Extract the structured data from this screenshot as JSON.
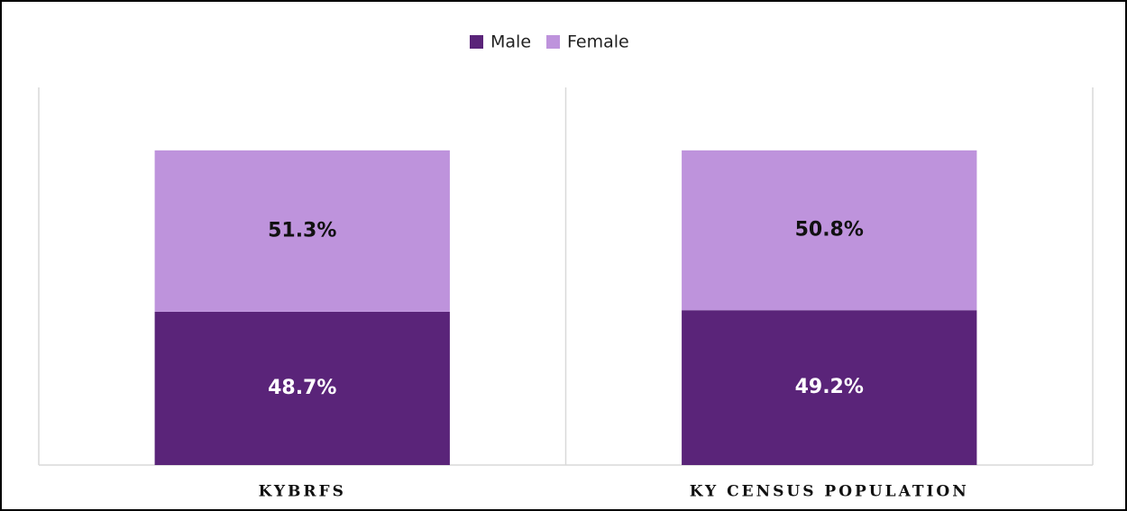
{
  "chart_data": {
    "type": "stacked_bar",
    "categories": [
      "KYBRFS",
      "KY CENSUS POPULATION"
    ],
    "series": [
      {
        "name": "Male",
        "color": "#5a2479",
        "values": [
          48.7,
          49.2
        ],
        "value_labels": [
          "48.7%",
          "49.2%"
        ]
      },
      {
        "name": "Female",
        "color": "#be93dc",
        "values": [
          51.3,
          50.8
        ],
        "value_labels": [
          "51.3%",
          "50.8%"
        ]
      }
    ],
    "ylim": [
      0,
      120
    ]
  }
}
